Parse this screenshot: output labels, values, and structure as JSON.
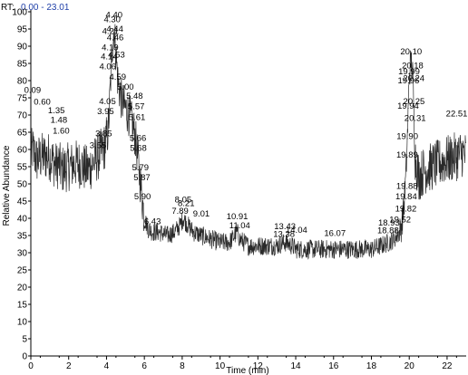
{
  "header": {
    "label": "RT:",
    "range": "0.00 - 23.01"
  },
  "chart_data": {
    "type": "line",
    "title": "",
    "xlabel": "Time (min)",
    "ylabel": "Relative Abundance",
    "xlim": [
      0,
      23.01
    ],
    "ylim": [
      0,
      100
    ],
    "xticks": [
      0,
      2,
      4,
      6,
      8,
      10,
      12,
      14,
      16,
      18,
      20,
      22
    ],
    "yticks": [
      0,
      5,
      10,
      15,
      20,
      25,
      30,
      35,
      40,
      45,
      50,
      55,
      60,
      65,
      70,
      75,
      80,
      85,
      90,
      95,
      100
    ],
    "grid": false,
    "line_color": "#2a2a2a",
    "series": [
      {
        "values_x": [
          0,
          0.09,
          0.3,
          0.6,
          1.0,
          1.35,
          1.48,
          1.6,
          2.0,
          2.5,
          3.0,
          3.55,
          3.85,
          3.95,
          4.05,
          4.14,
          4.2,
          4.3,
          4.4,
          4.5,
          4.6,
          4.8,
          5.0,
          5.2,
          5.48,
          5.6,
          5.7,
          5.8,
          5.9,
          6.0,
          6.2,
          6.43,
          6.8,
          7.2,
          7.6,
          7.89,
          8.05,
          8.3,
          8.6,
          9.0,
          9.5,
          10.0,
          10.5,
          10.91,
          11.04,
          11.5,
          12.0,
          12.5,
          13.0,
          13.43,
          13.8,
          14.04,
          14.5,
          15.0,
          15.5,
          16.07,
          16.5,
          17.0,
          17.5,
          18.0,
          18.5,
          18.93,
          19.2,
          19.52,
          19.7,
          19.82,
          19.88,
          19.94,
          20.0,
          20.1,
          20.18,
          20.24,
          20.31,
          20.5,
          20.8,
          21.2,
          21.6,
          22.0,
          22.51,
          22.8,
          23.01
        ],
        "values_y": [
          58,
          60,
          57,
          58,
          58,
          55,
          56,
          54,
          55,
          56,
          54,
          58,
          60,
          62,
          64,
          70,
          78,
          90,
          95,
          88,
          80,
          74,
          72,
          70,
          65,
          60,
          55,
          50,
          45,
          40,
          37,
          36,
          36,
          35,
          36,
          38,
          40,
          38,
          36,
          35,
          34,
          33,
          33,
          36,
          34,
          32,
          32,
          32,
          32,
          33,
          32,
          31,
          31,
          31,
          31,
          31,
          31,
          31,
          31,
          31,
          32,
          33,
          34,
          36,
          42,
          52,
          60,
          70,
          82,
          86,
          82,
          72,
          58,
          52,
          54,
          55,
          56,
          57,
          58,
          59,
          58
        ]
      }
    ],
    "annotations": [
      {
        "label": "4.40",
        "x": 4.4,
        "y": 98.3
      },
      {
        "label": "4.30",
        "x": 4.3,
        "y": 97.0
      },
      {
        "label": "4.44",
        "x": 4.44,
        "y": 94.2
      },
      {
        "label": "4.21",
        "x": 4.21,
        "y": 93.6
      },
      {
        "label": "4.46",
        "x": 4.46,
        "y": 91.7
      },
      {
        "label": "4.19",
        "x": 4.19,
        "y": 88.8
      },
      {
        "label": "4.53",
        "x": 4.53,
        "y": 86.7
      },
      {
        "label": "4.14",
        "x": 4.14,
        "y": 86.2
      },
      {
        "label": "4.06",
        "x": 4.06,
        "y": 83.3
      },
      {
        "label": "4.59",
        "x": 4.59,
        "y": 80.3
      },
      {
        "label": "5.00",
        "x": 5.0,
        "y": 77.4
      },
      {
        "label": "0.09",
        "x": 0.09,
        "y": 76.5
      },
      {
        "label": "0.60",
        "x": 0.6,
        "y": 73.0
      },
      {
        "label": "4.05",
        "x": 4.05,
        "y": 73.2
      },
      {
        "label": "5.48",
        "x": 5.48,
        "y": 74.7
      },
      {
        "label": "1.35",
        "x": 1.35,
        "y": 70.5
      },
      {
        "label": "3.95",
        "x": 3.95,
        "y": 70.2
      },
      {
        "label": "5.57",
        "x": 5.57,
        "y": 71.7
      },
      {
        "label": "1.48",
        "x": 1.48,
        "y": 67.7
      },
      {
        "label": "5.61",
        "x": 5.61,
        "y": 68.5
      },
      {
        "label": "1.60",
        "x": 1.6,
        "y": 64.6
      },
      {
        "label": "3.85",
        "x": 3.85,
        "y": 63.8
      },
      {
        "label": "5.66",
        "x": 5.66,
        "y": 62.5
      },
      {
        "label": "3.55",
        "x": 3.55,
        "y": 60.4
      },
      {
        "label": "5.68",
        "x": 5.68,
        "y": 59.6
      },
      {
        "label": "5.79",
        "x": 5.79,
        "y": 53.9
      },
      {
        "label": "5.87",
        "x": 5.87,
        "y": 51.1
      },
      {
        "label": "5.90",
        "x": 5.9,
        "y": 45.5
      },
      {
        "label": "8.05",
        "x": 8.05,
        "y": 44.6
      },
      {
        "label": "8.21",
        "x": 8.21,
        "y": 43.6
      },
      {
        "label": "7.89",
        "x": 7.89,
        "y": 41.3
      },
      {
        "label": "9.01",
        "x": 9.01,
        "y": 40.5
      },
      {
        "label": "10.91",
        "x": 10.91,
        "y": 39.7
      },
      {
        "label": "6.43",
        "x": 6.43,
        "y": 38.3
      },
      {
        "label": "11.04",
        "x": 11.04,
        "y": 37.1
      },
      {
        "label": "13.43",
        "x": 13.43,
        "y": 36.9
      },
      {
        "label": "14.04",
        "x": 14.04,
        "y": 35.8
      },
      {
        "label": "13.38",
        "x": 13.38,
        "y": 34.6
      },
      {
        "label": "16.07",
        "x": 16.07,
        "y": 34.9
      },
      {
        "label": "18.93",
        "x": 18.93,
        "y": 37.9
      },
      {
        "label": "18.88",
        "x": 18.88,
        "y": 35.6
      },
      {
        "label": "19.52",
        "x": 19.52,
        "y": 38.8
      },
      {
        "label": "19.82",
        "x": 19.82,
        "y": 42.0
      },
      {
        "label": "19.84",
        "x": 19.84,
        "y": 45.5
      },
      {
        "label": "19.88",
        "x": 19.88,
        "y": 48.6
      },
      {
        "label": "19.89",
        "x": 19.89,
        "y": 57.6
      },
      {
        "label": "19.90",
        "x": 19.9,
        "y": 63.0
      },
      {
        "label": "19.94",
        "x": 19.94,
        "y": 71.8
      },
      {
        "label": "19.96",
        "x": 19.96,
        "y": 79.2
      },
      {
        "label": "19.99",
        "x": 19.99,
        "y": 81.8
      },
      {
        "label": "20.10",
        "x": 20.1,
        "y": 87.6
      },
      {
        "label": "20.18",
        "x": 20.18,
        "y": 83.6
      },
      {
        "label": "20.24",
        "x": 20.24,
        "y": 79.9
      },
      {
        "label": "20.25",
        "x": 20.25,
        "y": 73.1
      },
      {
        "label": "20.31",
        "x": 20.31,
        "y": 68.3
      },
      {
        "label": "22.51",
        "x": 22.51,
        "y": 69.6
      }
    ]
  }
}
